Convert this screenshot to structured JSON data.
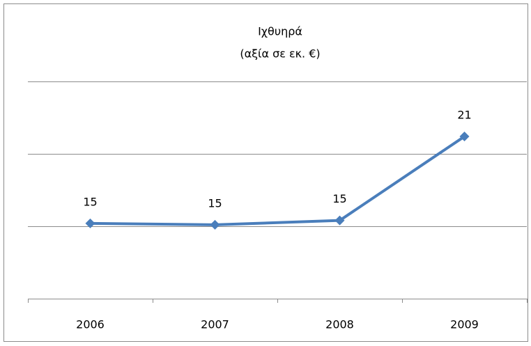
{
  "chart_data": {
    "type": "line",
    "title": "Ιχθυηρά",
    "subtitle": "(αξία σε εκ. €)",
    "categories": [
      "2006",
      "2007",
      "2008",
      "2009"
    ],
    "series": [
      {
        "name": "Ιχθυηρά",
        "color": "#4a7ebb",
        "values": [
          15.2,
          15.1,
          15.4,
          21.2
        ],
        "value_labels": [
          "15",
          "15",
          "15",
          "21"
        ]
      }
    ],
    "ylim": [
      10,
      25
    ],
    "yticks": [
      10,
      15,
      20,
      25
    ],
    "grid": true
  }
}
